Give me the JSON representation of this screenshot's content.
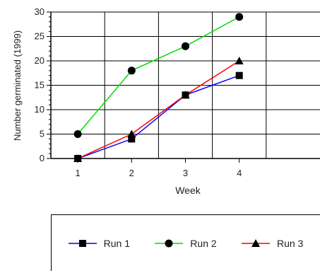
{
  "chart_data": {
    "type": "line",
    "xlabel": "Week",
    "ylabel": "Number germinated (1999)",
    "x": [
      1,
      2,
      3,
      4
    ],
    "xticks": [
      "1",
      "2",
      "3",
      "4"
    ],
    "xlim": [
      0.5,
      5.5
    ],
    "yticks": [
      "0",
      "5",
      "10",
      "15",
      "20",
      "25",
      "30"
    ],
    "ylim": [
      0,
      30
    ],
    "grid": true,
    "legend_position": "bottom",
    "series": [
      {
        "name": "Run 1",
        "values": [
          0,
          4,
          13,
          17
        ],
        "color": "#0000ff",
        "marker": "square"
      },
      {
        "name": "Run 2",
        "values": [
          5,
          18,
          23,
          29
        ],
        "color": "#00dd00",
        "marker": "circle"
      },
      {
        "name": "Run 3",
        "values": [
          0,
          5,
          13,
          20
        ],
        "color": "#ff0000",
        "marker": "triangle"
      }
    ]
  }
}
